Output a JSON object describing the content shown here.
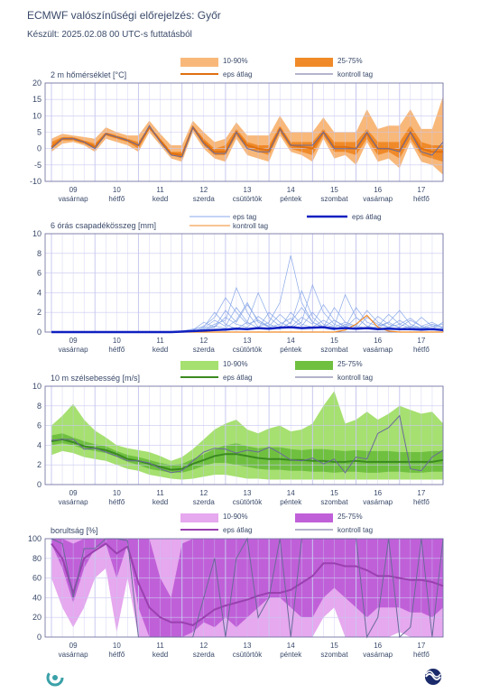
{
  "page": {
    "title": "ECMWF valószínűségi előrejelzés: Győr",
    "subtitle": "Készült: 2025.02.08 00 UTC-s futtatásból"
  },
  "colors": {
    "grid": "#c8c8f0",
    "axis_text": "#3a4a6a",
    "temp_band_outer": "#f8b87a",
    "temp_band_inner": "#f08a28",
    "temp_mean": "#e07010",
    "control": "#6a6a9a",
    "precip_member": "#8aa8e8",
    "precip_mean": "#1020c0",
    "precip_control": "#f08a28",
    "wind_band_outer": "#a6e070",
    "wind_band_inner": "#70c040",
    "wind_mean": "#3a8a20",
    "cloud_band_outer": "#e6a8ee",
    "cloud_band_inner": "#c060d8",
    "cloud_mean": "#9a40b0"
  },
  "x_axis": {
    "days": [
      {
        "num": "09",
        "name": "vasárnap"
      },
      {
        "num": "10",
        "name": "hétfő"
      },
      {
        "num": "11",
        "name": "kedd"
      },
      {
        "num": "12",
        "name": "szerda"
      },
      {
        "num": "13",
        "name": "csütörtök"
      },
      {
        "num": "14",
        "name": "péntek"
      },
      {
        "num": "15",
        "name": "szombat"
      },
      {
        "num": "16",
        "name": "vasárnap"
      },
      {
        "num": "17",
        "name": "hétfő"
      }
    ]
  },
  "chart_data": [
    {
      "type": "area",
      "title": "2 m hőmérséklet [°C]",
      "ylim": [
        -10,
        20
      ],
      "yticks": [
        -10,
        -5,
        0,
        5,
        10,
        15,
        20
      ],
      "legend": {
        "band_outer": "10-90%",
        "band_inner": "25-75%",
        "mean": "eps átlag",
        "control": "kontroll tag"
      },
      "x": [
        0,
        0.25,
        0.5,
        0.75,
        1,
        1.25,
        1.5,
        1.75,
        2,
        2.25,
        2.5,
        2.75,
        3,
        3.25,
        3.5,
        3.75,
        4,
        4.25,
        4.5,
        4.75,
        5,
        5.25,
        5.5,
        5.75,
        6,
        6.25,
        6.5,
        6.75,
        7,
        7.25,
        7.5,
        7.75,
        8,
        8.25,
        8.5,
        8.75,
        9
      ],
      "p10": [
        -1,
        1.5,
        2,
        1,
        -1,
        3,
        2,
        1,
        -1,
        5,
        1,
        -3,
        -4,
        5,
        0,
        -3,
        -4,
        3,
        -2,
        -3,
        -4,
        4,
        -1,
        -2,
        -4,
        3,
        -3,
        -2,
        -5,
        2,
        -4,
        -3,
        -6,
        2,
        -4,
        -5,
        -8
      ],
      "p25": [
        0,
        2.5,
        2.5,
        1.5,
        0,
        4,
        3,
        2,
        0,
        6,
        2,
        -2,
        -3,
        6,
        1,
        -2,
        -2,
        4,
        0,
        -1,
        -2,
        5,
        0,
        -1,
        -2,
        4,
        -1,
        -1,
        -2,
        3,
        -2,
        -1,
        -3,
        3,
        -2,
        -3,
        -4
      ],
      "p75": [
        2,
        3.5,
        3.5,
        2.5,
        1.5,
        5,
        4,
        3,
        2,
        7,
        3,
        -1,
        -1,
        7,
        3,
        0,
        1,
        6,
        2,
        1,
        1,
        7,
        2,
        2,
        2,
        6,
        2,
        2,
        2,
        6,
        2,
        2,
        2,
        7,
        2,
        1,
        1
      ],
      "p90": [
        3,
        4.5,
        4,
        3.5,
        3,
        6.5,
        5,
        4,
        4,
        8.5,
        4.5,
        1,
        1,
        8.5,
        5,
        2,
        3,
        8,
        4,
        4,
        4,
        10,
        5,
        5,
        5,
        9.5,
        5,
        5,
        5,
        12,
        6,
        7,
        7,
        12,
        6,
        6,
        16
      ],
      "mean": [
        0.5,
        3,
        3,
        2,
        0.5,
        4.5,
        3.5,
        2.5,
        1,
        6.5,
        2.5,
        -1.5,
        -2,
        6.5,
        2,
        -1,
        -1,
        5,
        1,
        0,
        -0.5,
        6,
        1,
        0.5,
        0,
        5,
        0.5,
        0.5,
        0,
        4.5,
        0,
        0,
        -0.5,
        5,
        0,
        -1,
        -1
      ],
      "control": [
        0,
        3,
        3,
        2,
        0,
        4.5,
        3.5,
        2.5,
        1,
        7,
        2,
        -2,
        -2.5,
        6.5,
        1.5,
        -1.5,
        -1.5,
        5,
        0,
        -1,
        -1,
        6,
        1,
        1,
        1,
        5,
        0,
        0,
        0,
        5,
        0,
        0,
        -1,
        5,
        -1,
        -2,
        2
      ]
    },
    {
      "type": "line",
      "title": "6 órás csapadékösszeg [mm]",
      "ylim": [
        0,
        10
      ],
      "yticks": [
        0,
        2,
        4,
        6,
        8,
        10
      ],
      "legend": {
        "members": "eps tag",
        "mean": "eps átlag",
        "control": "kontroll tag"
      },
      "x": [
        0,
        0.25,
        0.5,
        0.75,
        1,
        1.25,
        1.5,
        1.75,
        2,
        2.25,
        2.5,
        2.75,
        3,
        3.25,
        3.5,
        3.75,
        4,
        4.25,
        4.5,
        4.75,
        5,
        5.25,
        5.5,
        5.75,
        6,
        6.25,
        6.5,
        6.75,
        7,
        7.25,
        7.5,
        7.75,
        8,
        8.25,
        8.5,
        8.75,
        9
      ],
      "mean": [
        0,
        0,
        0,
        0,
        0,
        0,
        0,
        0,
        0,
        0,
        0,
        0,
        0.05,
        0.1,
        0.15,
        0.2,
        0.25,
        0.35,
        0.3,
        0.4,
        0.35,
        0.45,
        0.5,
        0.4,
        0.45,
        0.5,
        0.35,
        0.4,
        0.35,
        0.4,
        0.3,
        0.35,
        0.3,
        0.3,
        0.25,
        0.3,
        0.2
      ],
      "control": [
        0,
        0,
        0,
        0,
        0,
        0,
        0,
        0,
        0,
        0,
        0,
        0,
        0,
        0,
        0,
        0,
        0,
        0,
        0,
        0,
        0,
        0,
        0,
        0,
        0,
        0,
        0,
        0.2,
        0.8,
        1.7,
        0.5,
        0.1,
        0,
        0,
        0,
        0,
        0
      ],
      "members": [
        [
          0,
          0,
          0,
          0,
          0,
          0,
          0,
          0,
          0,
          0,
          0,
          0,
          0,
          0.2,
          0.6,
          1.5,
          3.5,
          2.0,
          0.8,
          1.2,
          0.5,
          0.3,
          1.0,
          2.5,
          1.0,
          0.4,
          0.2,
          0.8,
          0.5,
          0.3,
          0.6,
          1.0,
          0.4,
          0.2,
          0.5,
          0.3,
          0.2
        ],
        [
          0,
          0,
          0,
          0,
          0,
          0,
          0,
          0,
          0,
          0,
          0,
          0,
          0,
          0,
          0.3,
          0.8,
          1.2,
          4.5,
          2.0,
          0.5,
          1.0,
          3.0,
          7.8,
          3.0,
          1.0,
          0.5,
          1.2,
          0.6,
          0.3,
          1.5,
          0.8,
          0.5,
          0.3,
          0.6,
          0.4,
          0.2,
          0.3
        ],
        [
          0,
          0,
          0,
          0,
          0,
          0,
          0,
          0,
          0,
          0,
          0,
          0,
          0.1,
          0.3,
          0.5,
          2.0,
          0.8,
          0.3,
          1.0,
          4.0,
          1.5,
          0.6,
          0.4,
          1.0,
          4.8,
          2.0,
          0.8,
          0.4,
          1.5,
          0.6,
          0.3,
          0.5,
          1.2,
          0.5,
          0.3,
          0.6,
          0.8
        ],
        [
          0,
          0,
          0,
          0,
          0,
          0,
          0,
          0,
          0,
          0,
          0,
          0,
          0,
          0.2,
          1.0,
          0.5,
          2.2,
          1.0,
          2.8,
          1.2,
          0.6,
          1.8,
          0.8,
          4.2,
          1.5,
          0.5,
          2.5,
          1.0,
          0.6,
          0.4,
          1.6,
          0.8,
          0.5,
          1.2,
          0.6,
          0.3,
          1.0
        ],
        [
          0,
          0,
          0,
          0,
          0,
          0,
          0,
          0,
          0,
          0,
          0,
          0,
          0,
          0.1,
          0.4,
          1.2,
          0.6,
          2.5,
          1.0,
          0.4,
          2.0,
          1.0,
          0.5,
          1.5,
          0.8,
          2.8,
          1.2,
          0.5,
          2.5,
          1.0,
          0.6,
          1.8,
          0.8,
          0.4,
          1.5,
          0.6,
          0.4
        ],
        [
          0,
          0,
          0,
          0,
          0,
          0,
          0,
          0,
          0,
          0,
          0,
          0,
          0,
          0,
          0.2,
          0.5,
          1.5,
          0.8,
          0.5,
          1.6,
          0.8,
          0.4,
          2.0,
          0.8,
          0.5,
          1.2,
          0.6,
          3.8,
          1.5,
          0.6,
          0.4,
          1.0,
          2.2,
          0.8,
          0.4,
          0.8,
          0.5
        ],
        [
          0,
          0,
          0,
          0,
          0,
          0,
          0,
          0,
          0,
          0,
          0,
          0,
          0,
          0.1,
          0.3,
          0.6,
          0.4,
          1.2,
          3.0,
          1.0,
          0.5,
          0.8,
          1.4,
          0.6,
          2.0,
          0.8,
          0.5,
          1.0,
          0.6,
          2.2,
          1.0,
          0.5,
          0.8,
          1.4,
          0.6,
          1.0,
          0.4
        ]
      ]
    },
    {
      "type": "area",
      "title": "10 m szélsebesség [m/s]",
      "ylim": [
        0,
        10
      ],
      "yticks": [
        0,
        2,
        4,
        6,
        8,
        10
      ],
      "legend": {
        "band_outer": "10-90%",
        "band_inner": "25-75%",
        "mean": "eps átlag",
        "control": "kontroll tag"
      },
      "x": [
        0,
        0.25,
        0.5,
        0.75,
        1,
        1.25,
        1.5,
        1.75,
        2,
        2.25,
        2.5,
        2.75,
        3,
        3.25,
        3.5,
        3.75,
        4,
        4.25,
        4.5,
        4.75,
        5,
        5.25,
        5.5,
        5.75,
        6,
        6.25,
        6.5,
        6.75,
        7,
        7.25,
        7.5,
        7.75,
        8,
        8.25,
        8.5,
        8.75,
        9
      ],
      "p10": [
        3,
        3.4,
        3.2,
        2.8,
        2.6,
        2.4,
        2,
        1.6,
        1.4,
        1,
        0.8,
        0.6,
        0.5,
        0.6,
        0.8,
        1,
        1,
        0.8,
        0.6,
        0.6,
        0.5,
        0.5,
        0.5,
        0.5,
        0.5,
        0.5,
        0.5,
        0.5,
        0.5,
        0.5,
        0.5,
        0.5,
        0.5,
        0.5,
        0.5,
        0.5,
        0.5
      ],
      "p25": [
        4,
        4.2,
        4,
        3.6,
        3.4,
        3.2,
        2.8,
        2.3,
        2,
        1.6,
        1.4,
        1.2,
        1.2,
        1.5,
        1.9,
        2.2,
        2.2,
        2,
        1.8,
        1.6,
        1.5,
        1.5,
        1.4,
        1.4,
        1.3,
        1.3,
        1.2,
        1.3,
        1.3,
        1.2,
        1.2,
        1.3,
        1.3,
        1.2,
        1.2,
        1.3,
        1.3
      ],
      "p75": [
        5,
        5.2,
        4.8,
        4.4,
        4.1,
        3.9,
        3.4,
        3,
        2.8,
        2.5,
        2.2,
        2,
        2.1,
        2.6,
        3.1,
        3.6,
        4,
        4.2,
        3.9,
        3.7,
        3.8,
        3.8,
        3.6,
        3.5,
        3.6,
        3.6,
        3.5,
        3.4,
        3.5,
        3.4,
        3.4,
        3.4,
        3.3,
        3.3,
        3.3,
        3.4,
        3.4
      ],
      "p90": [
        6,
        7,
        8.2,
        6.6,
        5.5,
        4.8,
        4,
        3.7,
        3.5,
        3.3,
        2.9,
        2.4,
        2.8,
        3.6,
        4.6,
        5.6,
        6.2,
        6.6,
        5.6,
        5.2,
        5.7,
        6,
        5.4,
        5.6,
        6.2,
        8,
        9.5,
        6.2,
        6.6,
        7.4,
        6.6,
        7.2,
        8,
        7.6,
        7.2,
        7.4,
        6.2
      ],
      "mean": [
        4.4,
        4.6,
        4.3,
        3.9,
        3.7,
        3.5,
        3.1,
        2.6,
        2.4,
        2.1,
        1.8,
        1.5,
        1.6,
        2.1,
        2.5,
        2.9,
        3.1,
        3.1,
        2.9,
        2.7,
        2.6,
        2.6,
        2.5,
        2.5,
        2.4,
        2.4,
        2.3,
        2.3,
        2.4,
        2.3,
        2.3,
        2.3,
        2.3,
        2.3,
        2.3,
        2.3,
        2.5
      ],
      "control": [
        4.5,
        4.6,
        4.6,
        3.6,
        3.7,
        3.3,
        2.9,
        2.4,
        2.4,
        2.2,
        1.6,
        1.2,
        1.4,
        2.4,
        3.3,
        3.7,
        3.6,
        3.2,
        3.5,
        3.3,
        3.8,
        3.2,
        2.5,
        2.4,
        2.7,
        2.1,
        2.6,
        1.2,
        2.8,
        2.6,
        5.2,
        5.8,
        7,
        1.6,
        1.4,
        2.8,
        3.5
      ]
    },
    {
      "type": "area",
      "title": "borultság [%]",
      "ylim": [
        0,
        100
      ],
      "yticks": [
        0,
        20,
        40,
        60,
        80,
        100
      ],
      "legend": {
        "band_outer": "10-90%",
        "band_inner": "25-75%",
        "mean": "eps átlag",
        "control": "kontroll tag"
      },
      "x": [
        0,
        0.25,
        0.5,
        0.75,
        1,
        1.25,
        1.5,
        1.75,
        2,
        2.25,
        2.5,
        2.75,
        3,
        3.25,
        3.5,
        3.75,
        4,
        4.25,
        4.5,
        4.75,
        5,
        5.25,
        5.5,
        5.75,
        6,
        6.25,
        6.5,
        6.75,
        7,
        7.25,
        7.5,
        7.75,
        8,
        8.25,
        8.5,
        8.75,
        9
      ],
      "p10": [
        60,
        30,
        10,
        30,
        60,
        70,
        5,
        60,
        0,
        0,
        0,
        0,
        0,
        0,
        0,
        0,
        0,
        0,
        0,
        0,
        0,
        0,
        0,
        0,
        0,
        20,
        30,
        0,
        0,
        0,
        0,
        0,
        5,
        0,
        0,
        0,
        0
      ],
      "p25": [
        95,
        70,
        35,
        70,
        90,
        95,
        60,
        95,
        30,
        0,
        0,
        0,
        0,
        5,
        15,
        10,
        20,
        10,
        20,
        30,
        40,
        40,
        30,
        20,
        20,
        40,
        50,
        40,
        30,
        20,
        30,
        30,
        30,
        25,
        25,
        20,
        30
      ],
      "p75": [
        100,
        100,
        95,
        100,
        100,
        100,
        100,
        100,
        100,
        100,
        60,
        40,
        95,
        100,
        100,
        100,
        100,
        100,
        100,
        100,
        100,
        100,
        100,
        100,
        100,
        100,
        100,
        100,
        100,
        100,
        100,
        100,
        100,
        100,
        100,
        100,
        100
      ],
      "p90": [
        100,
        100,
        100,
        100,
        100,
        100,
        100,
        100,
        100,
        100,
        100,
        100,
        100,
        100,
        100,
        100,
        100,
        100,
        100,
        100,
        100,
        100,
        100,
        100,
        100,
        100,
        100,
        100,
        100,
        100,
        100,
        100,
        100,
        100,
        100,
        100,
        100
      ],
      "mean": [
        95,
        80,
        45,
        80,
        88,
        95,
        85,
        92,
        55,
        30,
        20,
        15,
        15,
        12,
        20,
        28,
        32,
        35,
        38,
        42,
        45,
        45,
        48,
        55,
        62,
        75,
        75,
        72,
        72,
        68,
        62,
        62,
        60,
        58,
        58,
        56,
        52
      ],
      "control": [
        100,
        95,
        40,
        90,
        90,
        100,
        100,
        98,
        0,
        0,
        0,
        0,
        0,
        0,
        40,
        80,
        0,
        80,
        100,
        20,
        40,
        100,
        0,
        100,
        100,
        100,
        100,
        100,
        100,
        0,
        20,
        100,
        0,
        10,
        100,
        0,
        100
      ]
    }
  ]
}
